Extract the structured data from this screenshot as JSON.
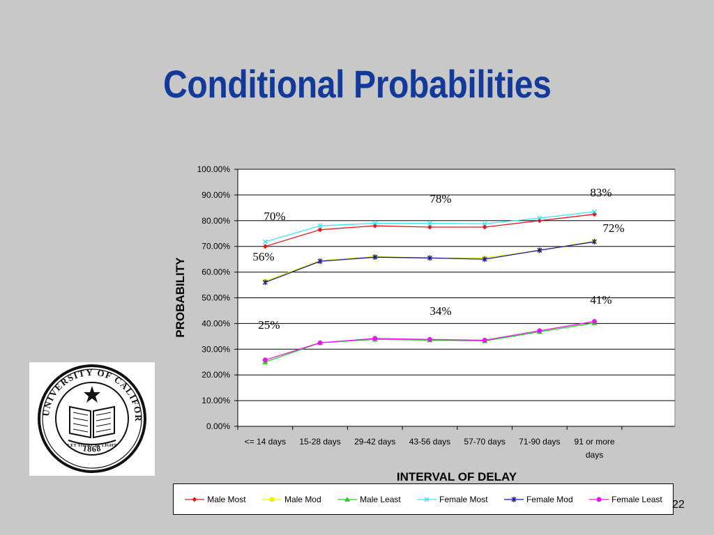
{
  "slide": {
    "title": "Conditional Probabilities",
    "page_number": "22",
    "background": "#c8c8c8",
    "title_color": "#123a9b"
  },
  "seal": {
    "text_ring": "THE UNIVERSITY OF CALIFORNIA",
    "motto": "LET THERE BE LIGHT",
    "year": "1868"
  },
  "chart_data": {
    "type": "line",
    "xlabel": "INTERVAL OF DELAY",
    "ylabel": "PROBABILITY",
    "categories": [
      "<= 14 days",
      "15-28 days",
      "29-42 days",
      "43-56 days",
      "57-70 days",
      "71-90 days",
      "91 or more days"
    ],
    "ylim": [
      0,
      100
    ],
    "yticks": [
      "0.00%",
      "10.00%",
      "20.00%",
      "30.00%",
      "40.00%",
      "50.00%",
      "60.00%",
      "70.00%",
      "80.00%",
      "90.00%",
      "100.00%"
    ],
    "grid": true,
    "legend_position": "bottom",
    "series": [
      {
        "name": "Male Most",
        "color": "#e8141c",
        "marker": "diamond",
        "values": [
          70,
          76.5,
          78,
          77.5,
          77.5,
          80,
          82.5
        ]
      },
      {
        "name": "Male Mod",
        "color": "#f0f000",
        "marker": "square",
        "values": [
          56.5,
          64.5,
          66,
          65.5,
          65.5,
          68.5,
          72
        ]
      },
      {
        "name": "Male Least",
        "color": "#20d020",
        "marker": "triangle",
        "values": [
          25,
          32.5,
          33.8,
          33.5,
          33.2,
          36.8,
          40.2
        ]
      },
      {
        "name": "Female Most",
        "color": "#33e6f2",
        "marker": "x",
        "values": [
          71.8,
          78,
          79,
          79,
          78.8,
          81,
          83.5
        ]
      },
      {
        "name": "Female Mod",
        "color": "#1616a0",
        "marker": "star",
        "values": [
          56,
          64.2,
          65.8,
          65.5,
          65,
          68.5,
          71.8
        ]
      },
      {
        "name": "Female Least",
        "color": "#ee14ee",
        "marker": "circle",
        "values": [
          25.8,
          32.5,
          34.2,
          33.8,
          33.5,
          37.2,
          40.8
        ]
      }
    ],
    "annotations": [
      "70%",
      "56%",
      "25%",
      "78%",
      "34%",
      "83%",
      "72%",
      "41%"
    ]
  }
}
